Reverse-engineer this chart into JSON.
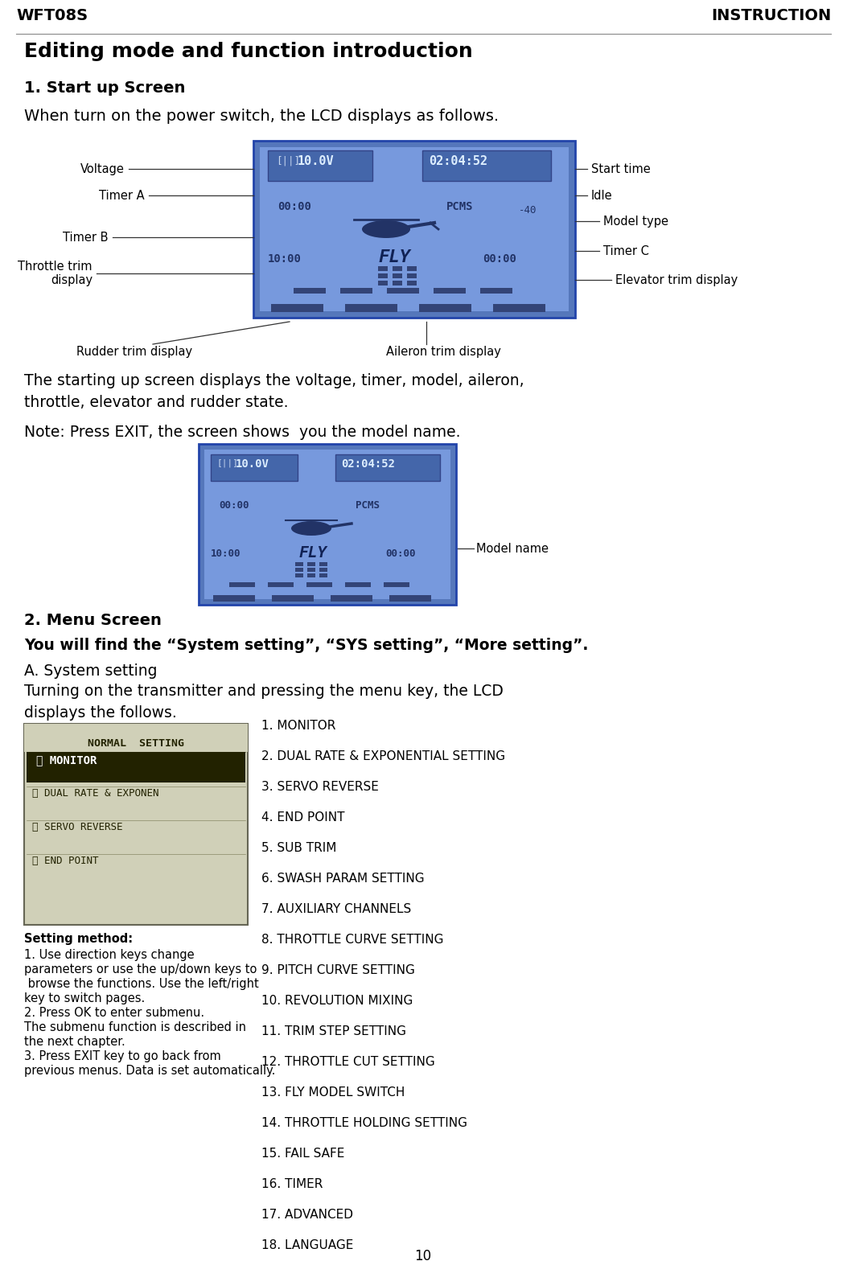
{
  "page_title_left": "WFT08S",
  "page_title_right": "INSTRUCTION",
  "main_heading": "Editing mode and function introduction",
  "section1_title": "1. Start up Screen",
  "section1_body1": "When turn on the power switch, the LCD displays as follows.",
  "section1_body2": "The starting up screen displays the voltage, timer, model, aileron,\nthrottle, elevator and rudder state.",
  "note_text": "Note: Press EXIT, the screen shows  you the model name.",
  "model_name_label": "Model name",
  "section2_title": "2. Menu Screen",
  "section2_bold": "You will find the “System setting”, “SYS setting”, “More setting”.",
  "section2_sub": "A. System setting",
  "section2_body": "Turning on the transmitter and pressing the menu key, the LCD\ndisplays the follows.",
  "menu_list": [
    "1. MONITOR",
    "2. DUAL RATE & EXPONENTIAL SETTING",
    "3. SERVO REVERSE",
    "4. END POINT",
    "5. SUB TRIM",
    "6. SWASH PARAM SETTING",
    "7. AUXILIARY CHANNELS",
    "8. THROTTLE CURVE SETTING",
    "9. PITCH CURVE SETTING",
    "10. REVOLUTION MIXING",
    "11. TRIM STEP SETTING",
    "12. THROTTLE CUT SETTING",
    "13. FLY MODEL SWITCH",
    "14. THROTTLE HOLDING SETTING",
    "15. FAIL SAFE",
    "16. TIMER",
    "17. ADVANCED",
    "18. LANGUAGE"
  ],
  "setting_method_title": "Setting method:",
  "setting_method_lines": [
    "1. Use direction keys change",
    "parameters or use the up/down keys to",
    " browse the functions. Use the left/right",
    "key to switch pages.",
    "2. Press OK to enter submenu.",
    "The submenu function is described in",
    "the next chapter.",
    "3. Press EXIT key to go back from",
    "previous menus. Data is set automatically."
  ],
  "page_number": "10",
  "bg_color": "#ffffff",
  "text_color": "#000000",
  "lcd_bg_color": "#6699cc",
  "header_line_color": "#888888"
}
